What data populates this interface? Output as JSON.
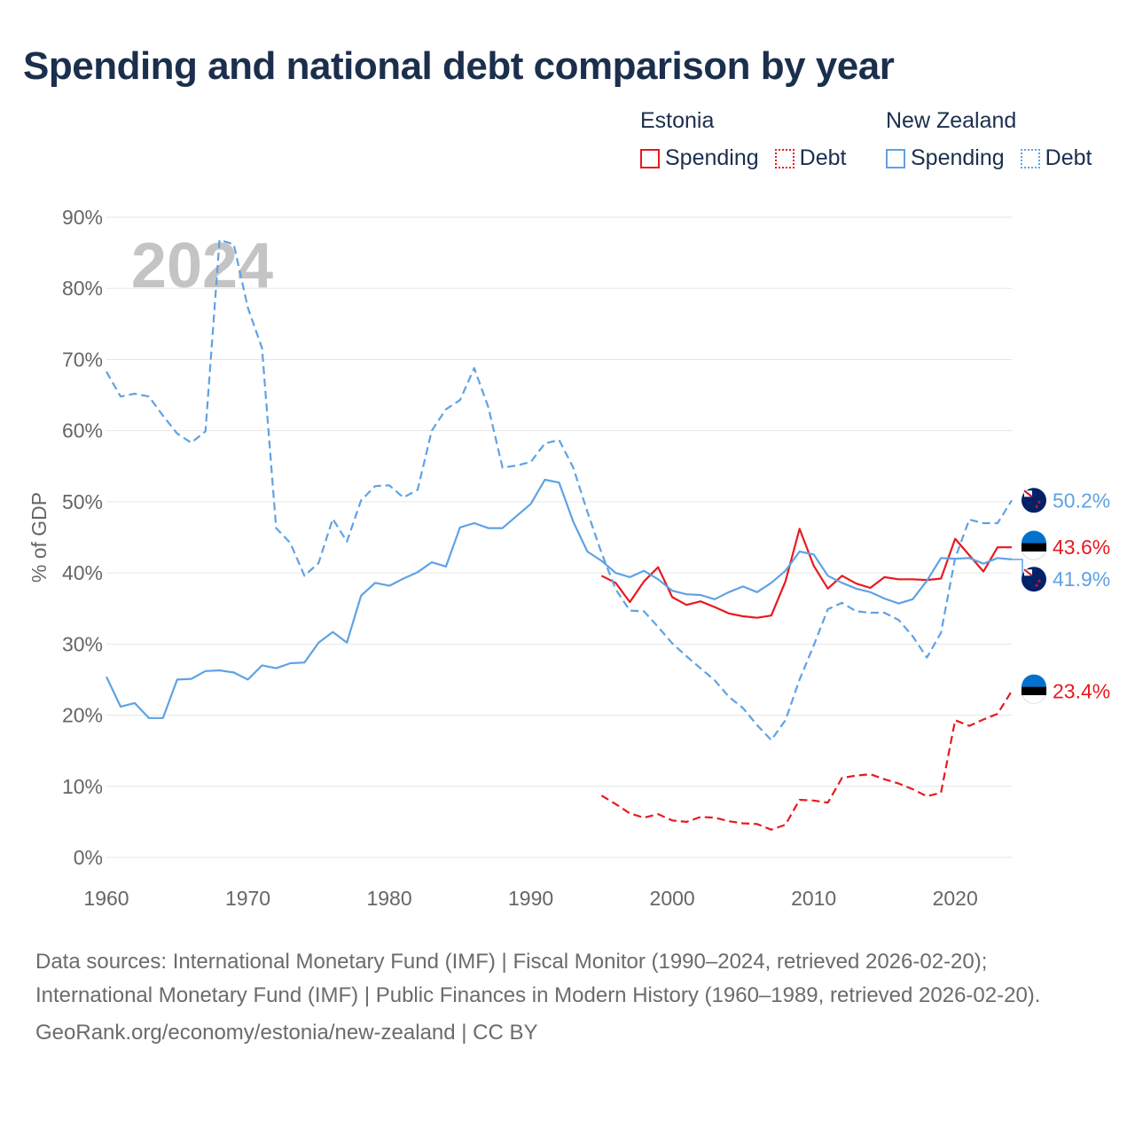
{
  "title": "Spending and national debt comparison by year",
  "legend": {
    "groups": [
      {
        "name": "Estonia",
        "items": [
          {
            "label": "Spending",
            "style": "solid",
            "color": "#e8191f"
          },
          {
            "label": "Debt",
            "style": "dotted",
            "color": "#e8191f"
          }
        ]
      },
      {
        "name": "New Zealand",
        "items": [
          {
            "label": "Spending",
            "style": "solid",
            "color": "#5fa2e4"
          },
          {
            "label": "Debt",
            "style": "dotted",
            "color": "#5fa2e4"
          }
        ]
      }
    ]
  },
  "colors": {
    "estonia": "#e8191f",
    "new_zealand": "#5fa2e4",
    "grid": "#e6e6e6",
    "axis_text": "#666666",
    "year_watermark": "#c4c4c4"
  },
  "chart_data": {
    "type": "line",
    "title": "Spending and national debt comparison by year",
    "ylabel": "% of GDP",
    "xlabel": "",
    "year_label": "2024",
    "xlim": [
      1960,
      2024
    ],
    "ylim": [
      0,
      90
    ],
    "x_ticks": [
      1960,
      1970,
      1980,
      1990,
      2000,
      2010,
      2020
    ],
    "y_ticks": [
      0,
      10,
      20,
      30,
      40,
      50,
      60,
      70,
      80,
      90
    ],
    "y_tick_labels": [
      "0%",
      "10%",
      "20%",
      "30%",
      "40%",
      "50%",
      "60%",
      "70%",
      "80%",
      "90%"
    ],
    "series": [
      {
        "name": "Estonia Spending",
        "country": "estonia",
        "kind": "spending",
        "color": "#e8191f",
        "dashed": false,
        "start": 1995,
        "values": [
          39.6,
          38.6,
          35.9,
          38.8,
          40.8,
          36.6,
          35.5,
          36.0,
          35.2,
          34.3,
          33.9,
          33.7,
          34.0,
          38.8,
          46.2,
          41.0,
          37.8,
          39.6,
          38.5,
          37.9,
          39.4,
          39.1,
          39.1,
          39.0,
          39.2,
          44.8,
          42.5,
          40.2,
          43.6,
          43.6
        ],
        "end_label": "43.6%"
      },
      {
        "name": "Estonia Debt",
        "country": "estonia",
        "kind": "debt",
        "color": "#e8191f",
        "dashed": true,
        "start": 1995,
        "values": [
          8.7,
          7.5,
          6.2,
          5.6,
          6.1,
          5.2,
          5.0,
          5.7,
          5.6,
          5.1,
          4.8,
          4.7,
          3.9,
          4.6,
          8.1,
          8.0,
          7.7,
          11.2,
          11.5,
          11.7,
          11.0,
          10.4,
          9.6,
          8.6,
          9.1,
          19.3,
          18.5,
          19.4,
          20.2,
          23.4
        ],
        "end_label": "23.4%"
      },
      {
        "name": "New Zealand Spending",
        "country": "new_zealand",
        "kind": "spending",
        "color": "#5fa2e4",
        "dashed": false,
        "start": 1960,
        "values": [
          25.4,
          21.2,
          21.7,
          19.6,
          19.6,
          25.0,
          25.1,
          26.2,
          26.3,
          26.0,
          25.0,
          27.0,
          26.6,
          27.3,
          27.4,
          30.2,
          31.7,
          30.2,
          36.8,
          38.6,
          38.2,
          39.2,
          40.1,
          41.5,
          40.9,
          46.4,
          47.0,
          46.3,
          46.3,
          48.0,
          49.7,
          53.1,
          52.7,
          47.2,
          43.0,
          41.7,
          40.0,
          39.4,
          40.3,
          39.1,
          37.5,
          37.0,
          36.9,
          36.3,
          37.3,
          38.1,
          37.3,
          38.6,
          40.3,
          43.0,
          42.6,
          39.6,
          38.6,
          37.8,
          37.3,
          36.4,
          35.7,
          36.3,
          38.9,
          42.1,
          42.0,
          42.1,
          41.3,
          42.1,
          41.9
        ],
        "end_label": "41.9%"
      },
      {
        "name": "New Zealand Debt",
        "country": "new_zealand",
        "kind": "debt",
        "color": "#5fa2e4",
        "dashed": true,
        "start": 1960,
        "values": [
          68.3,
          64.8,
          65.2,
          64.8,
          62.1,
          59.6,
          58.3,
          59.9,
          86.8,
          86.2,
          77.3,
          71.6,
          46.3,
          44.2,
          39.6,
          41.4,
          47.6,
          44.4,
          50.2,
          52.2,
          52.3,
          50.6,
          51.7,
          60.0,
          63.0,
          64.3,
          68.8,
          63.3,
          54.8,
          55.1,
          55.6,
          58.2,
          58.7,
          54.8,
          48.6,
          42.8,
          37.7,
          34.7,
          34.6,
          32.4,
          30.1,
          28.3,
          26.6,
          24.9,
          22.6,
          21.0,
          18.6,
          16.5,
          19.3,
          25.0,
          29.8,
          34.9,
          35.8,
          34.6,
          34.4,
          34.4,
          33.4,
          31.1,
          28.1,
          31.6,
          42.1,
          47.5,
          47.0,
          47.0,
          50.2
        ],
        "end_label": "50.2%"
      }
    ]
  },
  "footer": {
    "sources": "Data sources: International Monetary Fund (IMF) | Fiscal Monitor (1990–2024, retrieved 2026-02-20); International Monetary Fund (IMF) | Public Finances in Modern History (1960–1989, retrieved 2026-02-20).",
    "link": "GeoRank.org/economy/estonia/new-zealand | CC BY"
  }
}
